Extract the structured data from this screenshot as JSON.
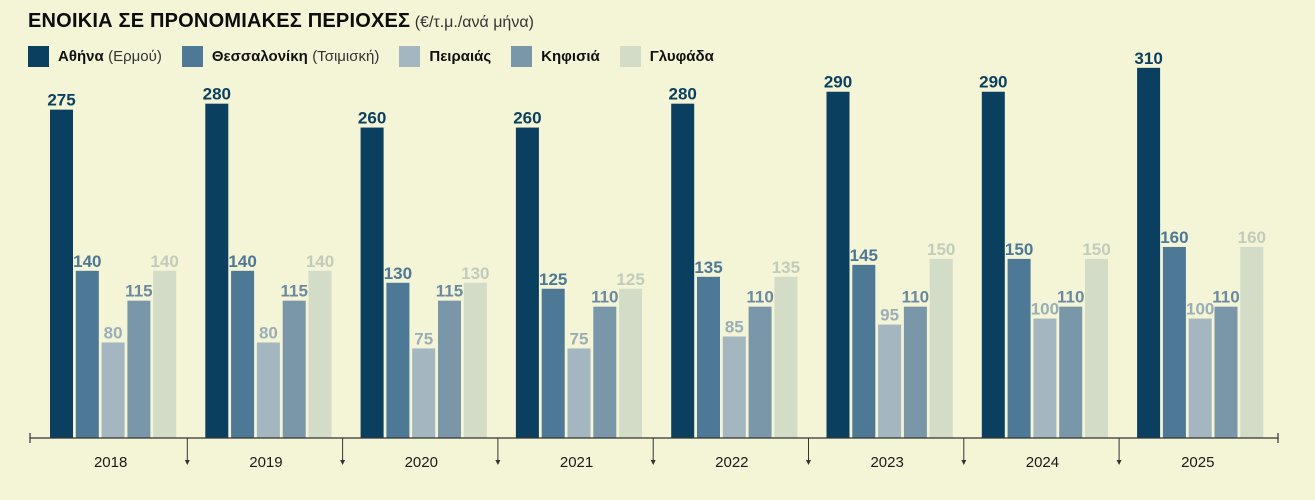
{
  "header": {
    "title": "ΕΝΟΙΚΙΑ ΣΕ ΠΡΟΝΟΜΙΑΚΕΣ ΠΕΡΙΟΧΕΣ",
    "unit": "(€/τ.μ./ανά μήνα)"
  },
  "legend": [
    {
      "label": "Αθήνα",
      "sub": "(Ερμού)",
      "color": "#0b3f5f"
    },
    {
      "label": "Θεσσαλονίκη",
      "sub": "(Τσιμισκή)",
      "color": "#4d7896"
    },
    {
      "label": "Πειραιάς",
      "sub": "",
      "color": "#a4b6bf"
    },
    {
      "label": "Κηφισιά",
      "sub": "",
      "color": "#7a97aa"
    },
    {
      "label": "Γλυφάδα",
      "sub": "",
      "color": "#d3dcc6"
    }
  ],
  "chart_data": {
    "type": "bar",
    "title": "ΕΝΟΙΚΙΑ ΣΕ ΠΡΟΝΟΜΙΑΚΕΣ ΠΕΡΙΟΧΕΣ",
    "subtitle": "(€/τ.μ./ανά μήνα)",
    "categories": [
      "2018",
      "2019",
      "2020",
      "2021",
      "2022",
      "2023",
      "2024",
      "2025"
    ],
    "series": [
      {
        "name": "Αθήνα (Ερμού)",
        "color": "#0b3f5f",
        "label_color": "#0b3f5f",
        "values": [
          275,
          280,
          260,
          260,
          280,
          290,
          290,
          310
        ]
      },
      {
        "name": "Θεσσαλονίκη (Τσιμισκή)",
        "color": "#4d7896",
        "label_color": "#4d7896",
        "values": [
          140,
          140,
          130,
          125,
          135,
          145,
          150,
          160
        ]
      },
      {
        "name": "Πειραιάς",
        "color": "#a4b6bf",
        "label_color": "#9aaeb8",
        "values": [
          80,
          80,
          75,
          75,
          85,
          95,
          100,
          100
        ]
      },
      {
        "name": "Κηφισιά",
        "color": "#7a97aa",
        "label_color": "#6b8aa0",
        "values": [
          115,
          115,
          115,
          110,
          110,
          110,
          110,
          110
        ]
      },
      {
        "name": "Γλυφάδα",
        "color": "#d3dcc6",
        "label_color": "#c2ccba",
        "values": [
          140,
          140,
          130,
          125,
          135,
          150,
          150,
          160
        ]
      }
    ],
    "ylim": [
      0,
      310
    ],
    "grid": false,
    "legend_position": "top-left"
  }
}
